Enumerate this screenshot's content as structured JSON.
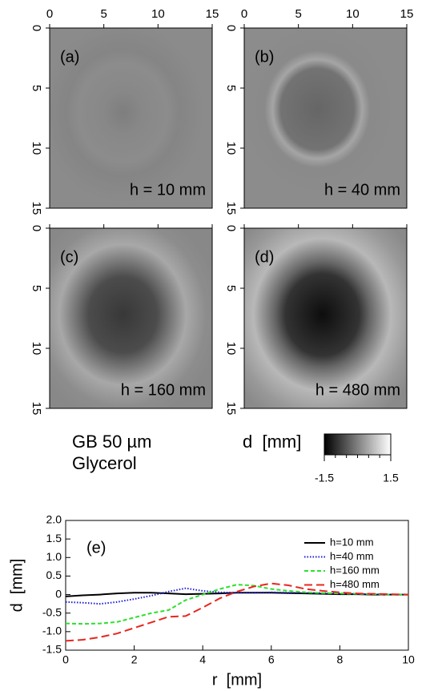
{
  "chart_data": [
    {
      "type": "image",
      "panel_label": "(a)",
      "annotation": "h = 10 mm",
      "xlim": [
        0,
        15
      ],
      "ylim": [
        0,
        15
      ],
      "xticks": [
        0,
        5,
        10,
        15
      ],
      "yticks": [
        0,
        5,
        10,
        15
      ],
      "xtick_labels": true
    },
    {
      "type": "image",
      "panel_label": "(b)",
      "annotation": "h = 40 mm",
      "xlim": [
        0,
        15
      ],
      "ylim": [
        0,
        15
      ],
      "xticks": [
        0,
        5,
        10,
        15
      ],
      "yticks": [
        0,
        5,
        10,
        15
      ],
      "xtick_labels": true
    },
    {
      "type": "image",
      "panel_label": "(c)",
      "annotation": "h = 160 mm",
      "xlim": [
        0,
        15
      ],
      "ylim": [
        0,
        15
      ],
      "xticks": [
        0,
        5,
        10,
        15
      ],
      "yticks": [
        0,
        5,
        10,
        15
      ],
      "xtick_labels": false
    },
    {
      "type": "image",
      "panel_label": "(d)",
      "annotation": "h = 480 mm",
      "xlim": [
        0,
        15
      ],
      "ylim": [
        0,
        15
      ],
      "xticks": [
        0,
        5,
        10,
        15
      ],
      "yticks": [
        0,
        5,
        10,
        15
      ],
      "xtick_labels": false
    },
    {
      "type": "colorbar",
      "label": "d  [mm]",
      "lim": [
        -1.5,
        1.5
      ],
      "ticks": [
        -1.5,
        1.5
      ],
      "notes": [
        "GB 50 µm",
        "Glycerol"
      ]
    },
    {
      "type": "line",
      "annotation": "(e)",
      "xlabel": "r  [mm]",
      "ylabel": "d  [mm]",
      "xlim": [
        0,
        10
      ],
      "ylim": [
        -1.5,
        2
      ],
      "xticks": [
        0,
        2,
        4,
        6,
        8,
        10
      ],
      "yticks": [
        {
          "value": 2,
          "label": "2.0"
        },
        1.5,
        {
          "value": 1,
          "label": "1.0"
        },
        0.5,
        0,
        -0.5,
        {
          "value": -1,
          "label": "-1.0"
        },
        -1.5
      ],
      "legend": "upper right",
      "x": [
        0,
        0.5,
        1,
        1.5,
        2,
        2.5,
        3,
        3.5,
        4,
        4.5,
        5,
        5.5,
        6,
        6.5,
        7,
        7.5,
        8,
        8.5,
        9,
        9.5,
        10
      ],
      "series": [
        {
          "name": "h=10 mm",
          "color": "#000000",
          "dash": "solid",
          "values": [
            -0.05,
            -0.02,
            0,
            0.03,
            0.05,
            0.05,
            0.03,
            0.01,
            0.02,
            0.03,
            0.05,
            0.05,
            0.05,
            0.04,
            0.03,
            0.02,
            0.01,
            0.01,
            0,
            0,
            0
          ]
        },
        {
          "name": "h=40 mm",
          "color": "#1a1adb",
          "dash": "dotted",
          "values": [
            -0.2,
            -0.22,
            -0.25,
            -0.2,
            -0.12,
            -0.03,
            0.08,
            0.17,
            0.1,
            0.06,
            0.05,
            0.05,
            0.06,
            0.05,
            0.05,
            0.04,
            0.03,
            0.02,
            0.01,
            0,
            0
          ]
        },
        {
          "name": "h=160 mm",
          "color": "#2ee02e",
          "dash": "dashed",
          "values": [
            -0.78,
            -0.79,
            -0.78,
            -0.74,
            -0.62,
            -0.5,
            -0.42,
            -0.15,
            0,
            0.15,
            0.27,
            0.24,
            0.15,
            0.1,
            0.06,
            0.04,
            0.03,
            0.02,
            0.01,
            0,
            0
          ]
        },
        {
          "name": "h=480 mm",
          "color": "#e8261e",
          "dash": "longdash",
          "values": [
            -1.25,
            -1.22,
            -1.15,
            -1.05,
            -0.9,
            -0.75,
            -0.6,
            -0.58,
            -0.35,
            -0.1,
            0.08,
            0.22,
            0.3,
            0.25,
            0.15,
            0.1,
            0.06,
            0.03,
            0.02,
            0.01,
            0
          ]
        }
      ]
    }
  ]
}
